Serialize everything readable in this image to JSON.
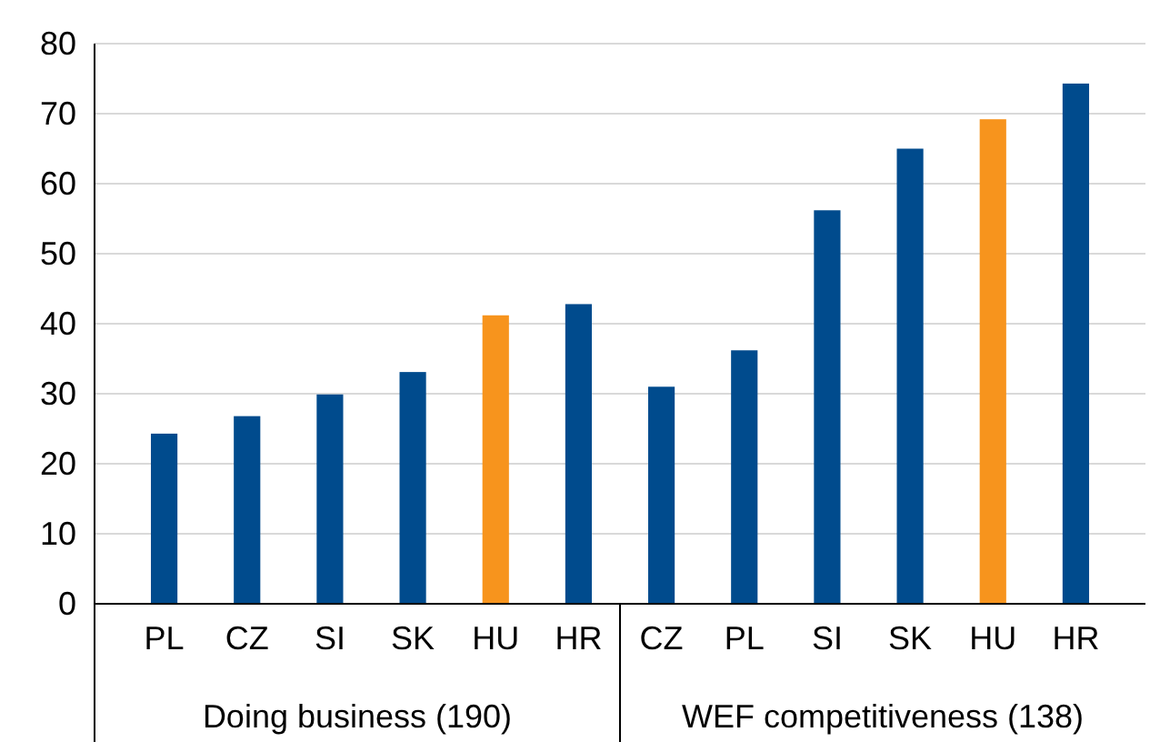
{
  "chart_data": {
    "type": "bar",
    "categories": [
      "PL",
      "CZ",
      "SI",
      "SK",
      "HU",
      "HR",
      "CZ",
      "PL",
      "SI",
      "SK",
      "HU",
      "HR"
    ],
    "values": [
      24.3,
      26.8,
      29.9,
      33.1,
      41.2,
      42.8,
      31,
      36.2,
      56.2,
      65,
      69.2,
      74.3
    ],
    "colors": [
      "#004b8d",
      "#004b8d",
      "#004b8d",
      "#004b8d",
      "#f7941d",
      "#004b8d",
      "#004b8d",
      "#004b8d",
      "#004b8d",
      "#004b8d",
      "#f7941d",
      "#004b8d"
    ],
    "annotations": [
      "Doing business (190)",
      "WEF competitiveness (138)"
    ],
    "ylim": [
      0,
      80
    ],
    "yticks": [
      0,
      10,
      20,
      30,
      40,
      50,
      60,
      70,
      80
    ],
    "grid": "y"
  }
}
